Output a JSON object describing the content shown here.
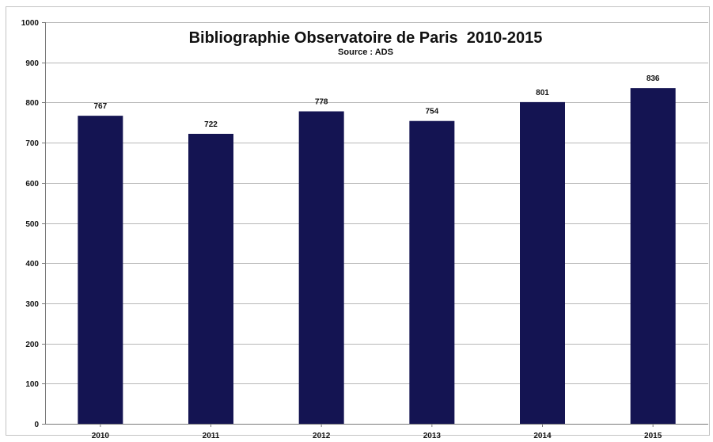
{
  "chart_data": {
    "type": "bar",
    "title": "Bibliographie Observatoire de Paris  2010-2015",
    "subtitle": "Source : ADS",
    "categories": [
      "2010",
      "2011",
      "2012",
      "2013",
      "2014",
      "2015"
    ],
    "values": [
      767,
      722,
      778,
      754,
      801,
      836
    ],
    "data_labels": [
      "767",
      "722",
      "778",
      "754",
      "801",
      "836"
    ],
    "ylim": [
      0,
      1000
    ],
    "yticks": [
      0,
      100,
      200,
      300,
      400,
      500,
      600,
      700,
      800,
      900,
      1000
    ],
    "grid": true,
    "legend": "none",
    "bar_color": "#141452"
  }
}
